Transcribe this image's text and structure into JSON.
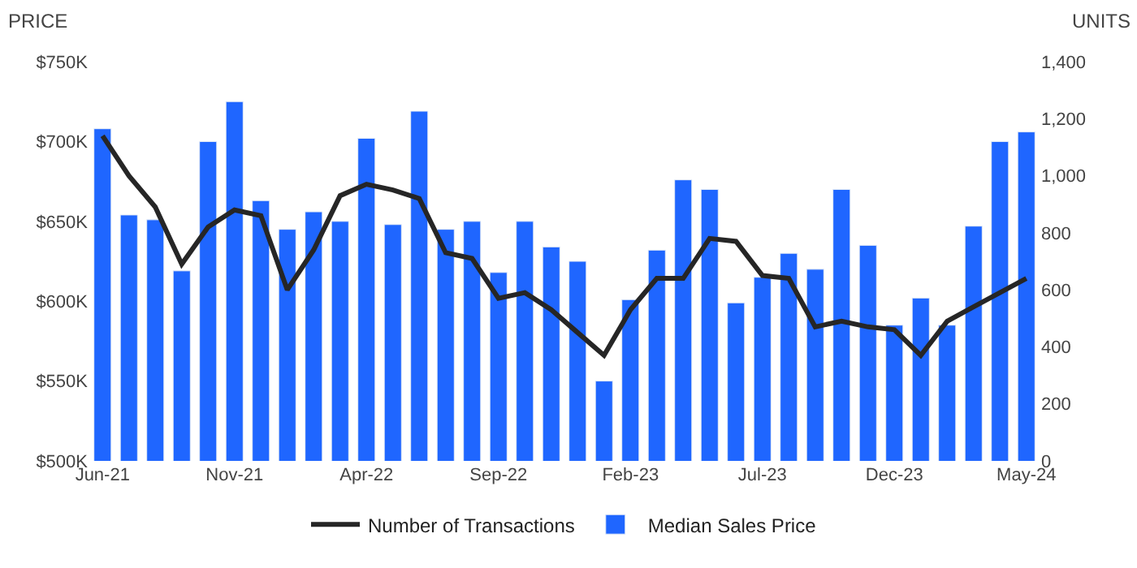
{
  "chart_data": {
    "type": "bar",
    "categories": [
      "Jun-21",
      null,
      null,
      null,
      null,
      "Nov-21",
      null,
      null,
      null,
      null,
      "Apr-22",
      null,
      null,
      null,
      null,
      "Sep-22",
      null,
      null,
      null,
      null,
      "Feb-23",
      null,
      null,
      null,
      null,
      "Jul-23",
      null,
      null,
      null,
      null,
      "Dec-23",
      null,
      null,
      null,
      null,
      "May-24"
    ],
    "ylabel": "PRICE",
    "y2label": "UNITS",
    "series": [
      {
        "name": "Number of Transactions",
        "type": "line",
        "axis": "y2",
        "color": "#262626",
        "values": [
          1140,
          1000,
          890,
          690,
          820,
          880,
          860,
          600,
          740,
          930,
          970,
          950,
          920,
          730,
          710,
          570,
          590,
          530,
          450,
          370,
          530,
          640,
          640,
          780,
          770,
          650,
          640,
          470,
          490,
          470,
          460,
          370,
          490,
          540,
          590,
          640
        ]
      },
      {
        "name": "Median Sales Price",
        "color": "#1f66ff",
        "values": [
          708000,
          654000,
          651000,
          619000,
          700000,
          725000,
          663000,
          645000,
          656000,
          650000,
          702000,
          648000,
          719000,
          645000,
          650000,
          618000,
          650000,
          634000,
          625000,
          550000,
          601000,
          632000,
          676000,
          670000,
          599000,
          615000,
          630000,
          620000,
          670000,
          635000,
          585000,
          602000,
          585000,
          647000,
          700000,
          706000
        ]
      }
    ],
    "ylim": [
      500000,
      750000
    ],
    "yticks": [
      {
        "value": 500000,
        "label": "$500K"
      },
      {
        "value": 550000,
        "label": "$550K"
      },
      {
        "value": 600000,
        "label": "$600K"
      },
      {
        "value": 650000,
        "label": "$650K"
      },
      {
        "value": 700000,
        "label": "$700K"
      },
      {
        "value": 750000,
        "label": "$750K"
      }
    ],
    "y2lim": [
      0,
      1400
    ],
    "y2ticks": [
      {
        "value": 0,
        "label": "0"
      },
      {
        "value": 200,
        "label": "200"
      },
      {
        "value": 400,
        "label": "400"
      },
      {
        "value": 600,
        "label": "600"
      },
      {
        "value": 800,
        "label": "800"
      },
      {
        "value": 1000,
        "label": "1,000"
      },
      {
        "value": 1200,
        "label": "1,200"
      },
      {
        "value": 1400,
        "label": "1,400"
      }
    ],
    "legend": "bottom",
    "marker": "none",
    "line_style": "solid"
  }
}
